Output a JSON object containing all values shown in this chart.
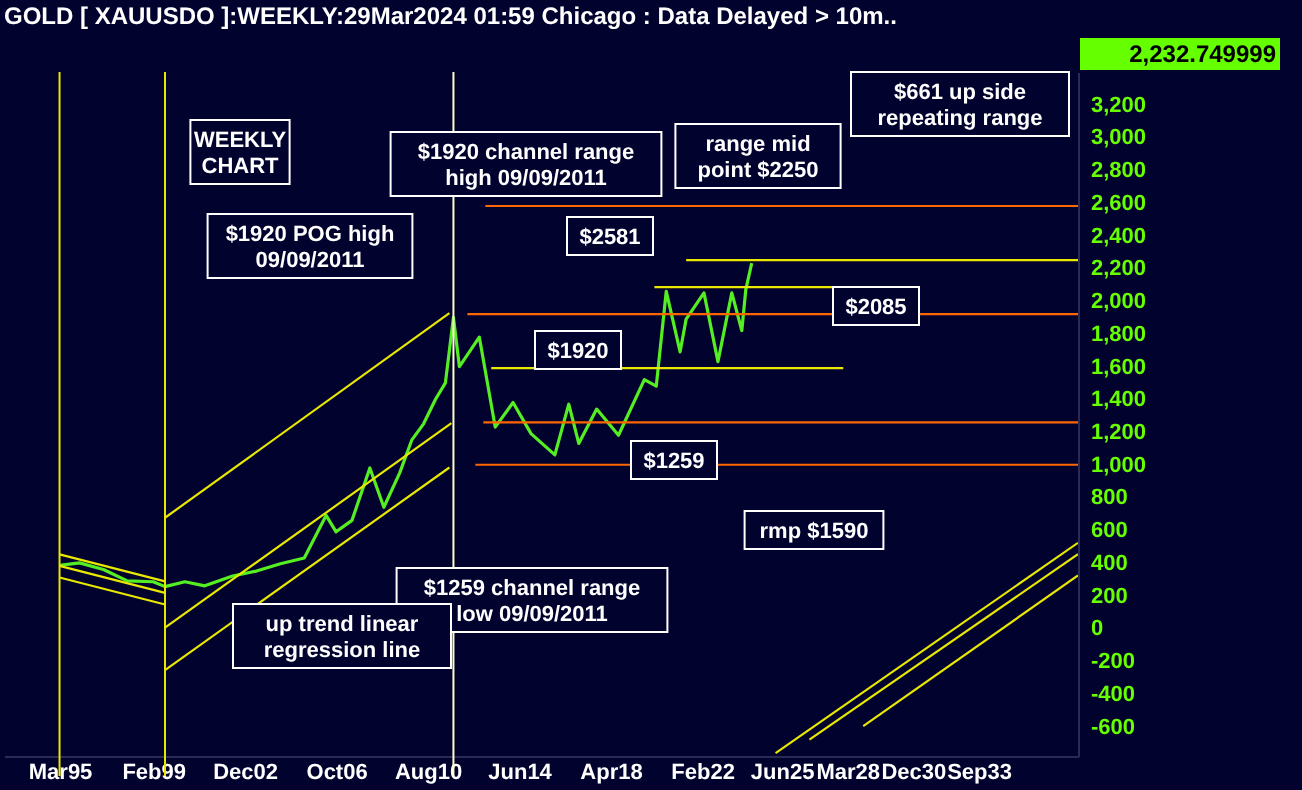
{
  "chart_data": {
    "type": "line",
    "title": "GOLD [ XAUUSDO ]:WEEKLY:29Mar2024 01:59 Chicago : Data Delayed > 10m..",
    "xlim": [
      "1992-11",
      "2037-11"
    ],
    "xticks": [
      {
        "value": "1995-03",
        "label": "Mar95"
      },
      {
        "value": "1999-02",
        "label": "Feb99"
      },
      {
        "value": "2002-12",
        "label": "Dec02"
      },
      {
        "value": "2006-10",
        "label": "Oct06"
      },
      {
        "value": "2010-08",
        "label": "Aug10"
      },
      {
        "value": "2014-06",
        "label": "Jun14"
      },
      {
        "value": "2018-04",
        "label": "Apr18"
      },
      {
        "value": "2022-02",
        "label": "Feb22"
      },
      {
        "value": "2025-06",
        "label": "Jun25"
      },
      {
        "value": "2028-03",
        "label": "Mar28"
      },
      {
        "value": "2030-12",
        "label": "Dec30"
      },
      {
        "value": "2033-09",
        "label": "Sep33"
      }
    ],
    "ylim": [
      -780,
      3400
    ],
    "yticks": [
      {
        "value": 3200,
        "label": "3,200"
      },
      {
        "value": 3000,
        "label": "3,000"
      },
      {
        "value": 2800,
        "label": "2,800"
      },
      {
        "value": 2600,
        "label": "2,600"
      },
      {
        "value": 2400,
        "label": "2,400"
      },
      {
        "value": 2200,
        "label": "2,200"
      },
      {
        "value": 2000,
        "label": "2,000"
      },
      {
        "value": 1800,
        "label": "1,800"
      },
      {
        "value": 1600,
        "label": "1,600"
      },
      {
        "value": 1400,
        "label": "1,400"
      },
      {
        "value": 1200,
        "label": "1,200"
      },
      {
        "value": 1000,
        "label": "1,000"
      },
      800,
      600,
      400,
      200,
      0,
      -200,
      -400,
      -600
    ],
    "grid": false,
    "series": [
      {
        "color": "#55ee22",
        "x": [
          "1995-03",
          "1996-01",
          "1997-01",
          "1998-01",
          "1999-02",
          "1999-08",
          "2000-06",
          "2001-04",
          "2002-06",
          "2003-06",
          "2004-06",
          "2005-06",
          "2006-05",
          "2006-10",
          "2007-06",
          "2008-03",
          "2008-10",
          "2009-06",
          "2009-12",
          "2010-06",
          "2010-12",
          "2011-05",
          "2011-09",
          "2011-12",
          "2012-10",
          "2013-06",
          "2014-03",
          "2014-12",
          "2015-12",
          "2016-07",
          "2016-12",
          "2017-09",
          "2018-08",
          "2019-09",
          "2020-03",
          "2020-08",
          "2021-03",
          "2021-06",
          "2022-03",
          "2022-10",
          "2023-05",
          "2023-10",
          "2023-12",
          "2024-03"
        ],
        "values": [
          385,
          400,
          360,
          290,
          285,
          255,
          285,
          260,
          320,
          350,
          395,
          430,
          690,
          590,
          660,
          980,
          740,
          950,
          1150,
          1250,
          1400,
          1500,
          1900,
          1600,
          1780,
          1230,
          1380,
          1190,
          1060,
          1370,
          1130,
          1340,
          1180,
          1520,
          1480,
          2060,
          1690,
          1890,
          2050,
          1630,
          2050,
          1820,
          2070,
          2232
        ]
      },
      {
        "color": "#e8e800",
        "x": [
          "1995-03",
          "1999-08"
        ],
        "values": [
          452,
          287
        ]
      },
      {
        "color": "#e8e800",
        "x": [
          "1995-03",
          "1999-08"
        ],
        "values": [
          382,
          217
        ]
      },
      {
        "color": "#e8e800",
        "x": [
          "1995-03",
          "1999-08"
        ],
        "values": [
          311,
          146
        ]
      },
      {
        "color": "#e8e800",
        "x": [
          "1999-08",
          "2011-07"
        ],
        "values": [
          676,
          1926
        ]
      },
      {
        "color": "#e8e800",
        "x": [
          "1999-08",
          "2011-08"
        ],
        "values": [
          4,
          1254
        ]
      },
      {
        "color": "#e8e800",
        "x": [
          "1999-08",
          "2011-07"
        ],
        "values": [
          -255,
          983
        ]
      },
      {
        "color": "#ff6600",
        "x": [
          "2013-01",
          "2037-11"
        ],
        "values": [
          2581,
          2581
        ]
      },
      {
        "color": "#ff6600",
        "x": [
          "2012-04",
          "2037-11"
        ],
        "values": [
          1920,
          1920
        ]
      },
      {
        "color": "#ff6600",
        "x": [
          "2012-12",
          "2037-11"
        ],
        "values": [
          1259,
          1259
        ]
      },
      {
        "color": "#ff6600",
        "x": [
          "2012-08",
          "2037-11"
        ],
        "values": [
          1000,
          1000
        ]
      },
      {
        "color": "#e8e800",
        "x": [
          "2021-06",
          "2037-11"
        ],
        "values": [
          2250,
          2250
        ]
      },
      {
        "color": "#e8e800",
        "x": [
          "2020-02",
          "2027-09"
        ],
        "values": [
          2085,
          2085
        ]
      },
      {
        "color": "#e8e800",
        "x": [
          "2013-04",
          "2028-01"
        ],
        "values": [
          1590,
          1590
        ]
      },
      {
        "color": "#e8e800",
        "x": [
          "2025-03",
          "2037-11"
        ],
        "values": [
          -762,
          523
        ]
      },
      {
        "color": "#e8e800",
        "x": [
          "2026-08",
          "2037-11"
        ],
        "values": [
          -680,
          453
        ]
      },
      {
        "color": "#e8e800",
        "x": [
          "2028-11",
          "2037-11"
        ],
        "values": [
          -597,
          323
        ]
      }
    ],
    "ref_lines": [
      {
        "axis": "x",
        "value": "1995-03",
        "color": "#e8e800"
      },
      {
        "axis": "x",
        "value": "1999-08",
        "color": "#e8e800"
      },
      {
        "axis": "x",
        "value": "2011-09",
        "color": "#ffffcc"
      }
    ],
    "annotations": [
      "2,232.749999",
      "WEEKLY\nCHART",
      "$1920 channel range\nhigh 09/09/2011",
      "$1920 POG high\n09/09/2011",
      "$2581",
      "$1920",
      "range mid\npoint $2250",
      "$661 up side\nrepeating range",
      "$2085",
      "$1259",
      "rmp $1590",
      "$1259 channel range\nlow 09/09/2011",
      "up trend linear\nregression line"
    ]
  }
}
